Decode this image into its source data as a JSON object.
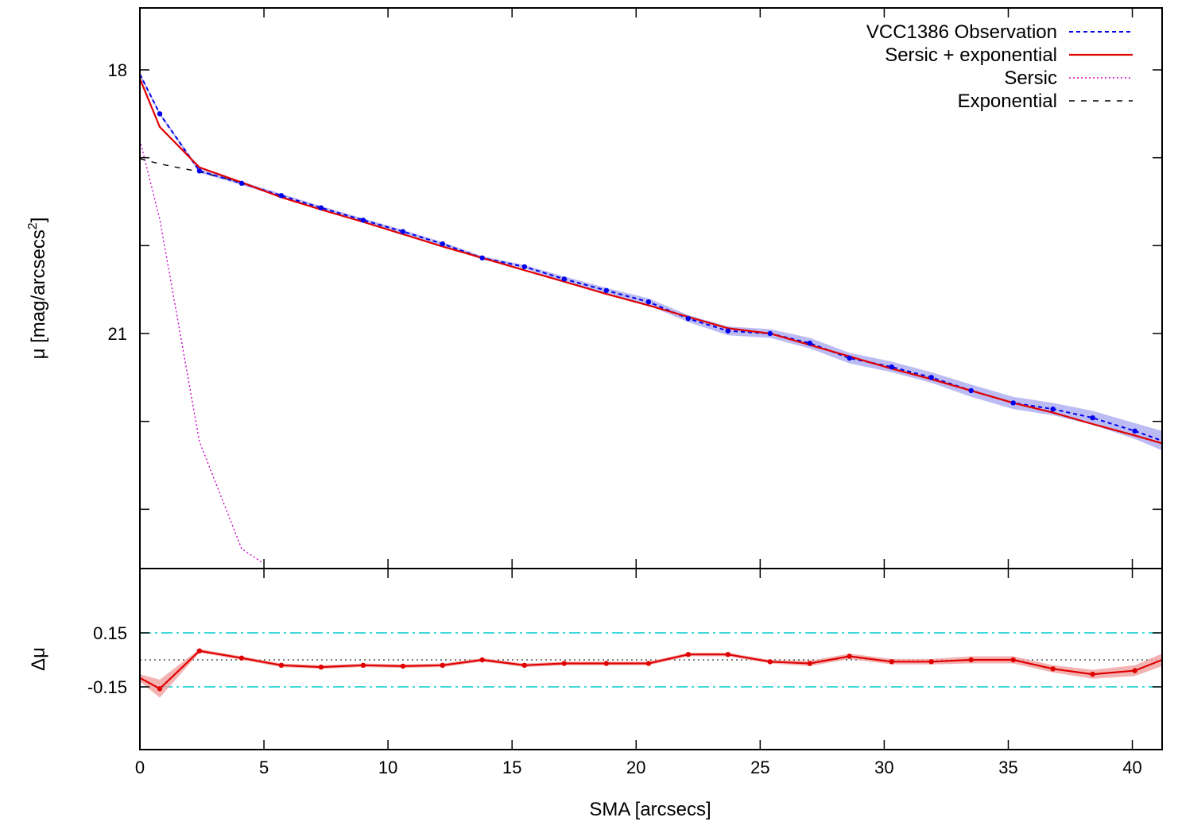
{
  "chart_data": [
    {
      "type": "line",
      "panel": "main",
      "xlabel": "SMA [arcsecs]",
      "ylabel": "μ [mag/arcsecs",
      "ylabel_sup": "2",
      "y_inverted": true,
      "xlim": [
        0,
        41.2
      ],
      "ylim": [
        17.3,
        23.6
      ],
      "yticks_labeled": [
        18,
        21
      ],
      "yticks_minor": [
        19,
        20,
        22,
        23
      ],
      "xticks": [
        0,
        5,
        10,
        15,
        20,
        25,
        30,
        35,
        40
      ],
      "legend": {
        "placement": "top-right",
        "entries": [
          "VCC1386 Observation",
          "Sersic + exponential",
          "Sersic",
          "Exponential"
        ]
      },
      "series": [
        {
          "name": "VCC1386 Observation",
          "style": "blue dotted with points and error band",
          "color": "#0000ee",
          "x": [
            0,
            0.8,
            2.4,
            4.1,
            5.7,
            7.3,
            9.0,
            10.6,
            12.2,
            13.8,
            15.5,
            17.1,
            18.8,
            20.5,
            22.1,
            23.7,
            25.4,
            27.0,
            28.6,
            30.3,
            31.9,
            33.5,
            35.2,
            36.8,
            38.4,
            40.1,
            41.2
          ],
          "y": [
            18.05,
            18.5,
            19.15,
            19.29,
            19.43,
            19.57,
            19.71,
            19.84,
            19.98,
            20.14,
            20.24,
            20.38,
            20.51,
            20.64,
            20.83,
            20.97,
            21.0,
            21.11,
            21.28,
            21.38,
            21.5,
            21.65,
            21.79,
            21.86,
            21.96,
            22.11,
            22.22
          ],
          "err": [
            0.02,
            0.02,
            0.02,
            0.02,
            0.02,
            0.02,
            0.02,
            0.02,
            0.02,
            0.02,
            0.02,
            0.03,
            0.03,
            0.04,
            0.04,
            0.05,
            0.05,
            0.06,
            0.06,
            0.06,
            0.06,
            0.07,
            0.07,
            0.07,
            0.08,
            0.09,
            0.11
          ]
        },
        {
          "name": "Sersic + exponential",
          "style": "red solid",
          "color": "#e00000",
          "x": [
            0,
            0.8,
            2.4,
            4.1,
            5.7,
            7.3,
            9.0,
            10.6,
            12.2,
            13.8,
            15.5,
            17.1,
            18.8,
            20.5,
            22.1,
            23.7,
            25.4,
            27.0,
            28.6,
            30.3,
            31.9,
            33.5,
            35.2,
            36.8,
            38.4,
            40.1,
            41.2
          ],
          "y": [
            18.1,
            18.65,
            19.11,
            19.28,
            19.45,
            19.59,
            19.73,
            19.87,
            20.01,
            20.14,
            20.28,
            20.41,
            20.55,
            20.68,
            20.81,
            20.94,
            21.0,
            21.13,
            21.26,
            21.4,
            21.52,
            21.65,
            21.79,
            21.9,
            22.03,
            22.16,
            22.25
          ]
        },
        {
          "name": "Sersic",
          "style": "magenta dotted",
          "color": "#cc00cc",
          "x": [
            0,
            0.8,
            2.4,
            4.1,
            4.9
          ],
          "y": [
            18.8,
            19.7,
            22.23,
            23.45,
            23.6
          ]
        },
        {
          "name": "Exponential",
          "style": "black dashed",
          "color": "#000000",
          "x": [
            0,
            0.8,
            2.4,
            4.1
          ],
          "y": [
            19.01,
            19.07,
            19.16,
            19.28
          ]
        }
      ]
    },
    {
      "type": "line",
      "panel": "residual",
      "ylabel": "Δμ",
      "xlabel": "SMA [arcsecs]",
      "xlim": [
        0,
        41.2
      ],
      "ylim": [
        -0.5,
        0.5
      ],
      "yticks_labeled": [
        0.15,
        -0.15
      ],
      "ytick_labels": [
        "0.15",
        "-0.15"
      ],
      "reference_lines": [
        {
          "y": 0.15,
          "style": "cyan dash-dot",
          "color": "#00cccc"
        },
        {
          "y": -0.15,
          "style": "cyan dash-dot",
          "color": "#00cccc"
        },
        {
          "y": 0,
          "style": "black dotted",
          "color": "#000000"
        }
      ],
      "series": [
        {
          "name": "",
          "style": "red solid with points and error band",
          "color": "#e00000",
          "band_color": "#f0a0a0",
          "x": [
            0,
            0.8,
            2.4,
            4.1,
            5.7,
            7.3,
            9.0,
            10.6,
            12.2,
            13.8,
            15.5,
            17.1,
            18.8,
            20.5,
            22.1,
            23.7,
            25.4,
            27.0,
            28.6,
            30.3,
            31.9,
            33.5,
            35.2,
            36.8,
            38.4,
            40.1,
            41.2
          ],
          "y": [
            -0.1,
            -0.16,
            0.05,
            0.01,
            -0.03,
            -0.04,
            -0.03,
            -0.035,
            -0.03,
            0.0,
            -0.03,
            -0.02,
            -0.02,
            -0.02,
            0.03,
            0.03,
            -0.01,
            -0.02,
            0.02,
            -0.01,
            -0.01,
            0.0,
            0.0,
            -0.05,
            -0.08,
            -0.06,
            0.0
          ],
          "err": [
            0.02,
            0.05,
            0.01,
            0.01,
            0.01,
            0.01,
            0.01,
            0.01,
            0.01,
            0.01,
            0.01,
            0.01,
            0.01,
            0.01,
            0.01,
            0.01,
            0.01,
            0.015,
            0.015,
            0.015,
            0.015,
            0.02,
            0.02,
            0.02,
            0.025,
            0.03,
            0.035
          ]
        }
      ]
    }
  ]
}
